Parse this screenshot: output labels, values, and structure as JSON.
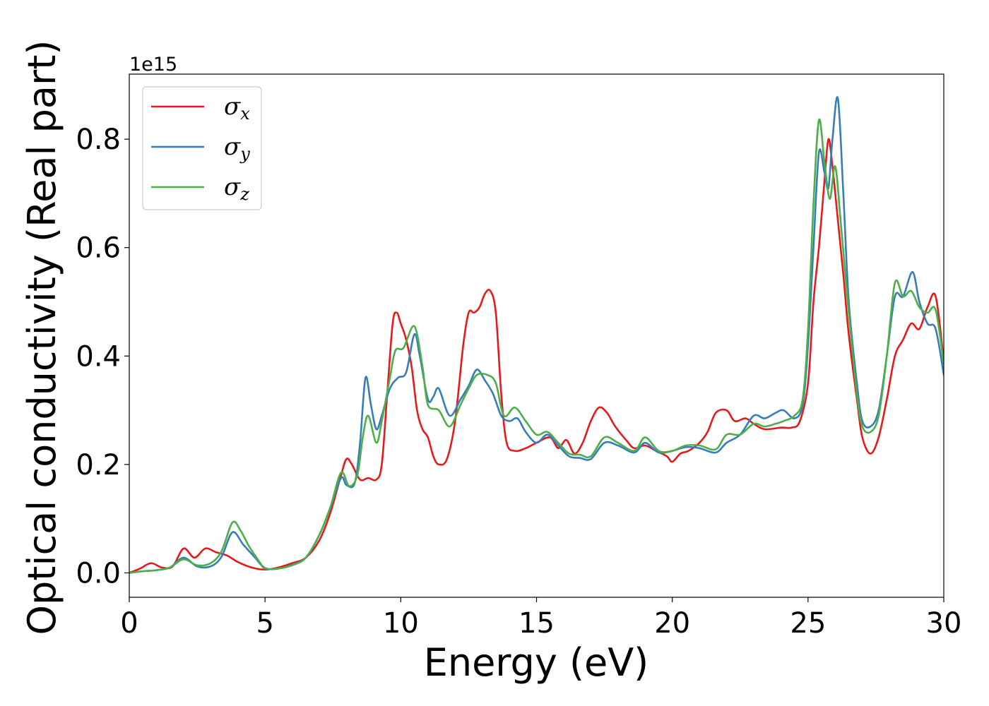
{
  "chart_data": {
    "type": "line",
    "xlabel": "Energy (eV)",
    "ylabel": "Optical conductivity (Real part)",
    "y_offset_text": "1e15",
    "xlim": [
      0,
      30
    ],
    "ylim": [
      -0.045,
      0.92
    ],
    "xticks": [
      0,
      5,
      10,
      15,
      20,
      25,
      30
    ],
    "xtick_labels": [
      "0",
      "5",
      "10",
      "15",
      "20",
      "25",
      "30"
    ],
    "yticks": [
      0.0,
      0.2,
      0.4,
      0.6,
      0.8
    ],
    "ytick_labels": [
      "0.0",
      "0.2",
      "0.4",
      "0.6",
      "0.8"
    ],
    "grid": false,
    "legend_position": "top-left",
    "series": [
      {
        "name": "σx",
        "base": "σ",
        "sub": "x",
        "color": "#e41a1c",
        "points": [
          [
            0,
            0.0
          ],
          [
            0.4,
            0.008
          ],
          [
            0.8,
            0.018
          ],
          [
            1.2,
            0.01
          ],
          [
            1.6,
            0.012
          ],
          [
            2.0,
            0.045
          ],
          [
            2.4,
            0.028
          ],
          [
            2.8,
            0.045
          ],
          [
            3.2,
            0.038
          ],
          [
            3.6,
            0.032
          ],
          [
            4.0,
            0.02
          ],
          [
            4.5,
            0.01
          ],
          [
            5.0,
            0.006
          ],
          [
            5.5,
            0.01
          ],
          [
            6.0,
            0.018
          ],
          [
            6.5,
            0.028
          ],
          [
            7.0,
            0.06
          ],
          [
            7.4,
            0.11
          ],
          [
            7.8,
            0.18
          ],
          [
            8.0,
            0.21
          ],
          [
            8.2,
            0.2
          ],
          [
            8.5,
            0.172
          ],
          [
            8.8,
            0.175
          ],
          [
            9.1,
            0.172
          ],
          [
            9.3,
            0.2
          ],
          [
            9.5,
            0.33
          ],
          [
            9.7,
            0.46
          ],
          [
            9.85,
            0.48
          ],
          [
            10.0,
            0.46
          ],
          [
            10.2,
            0.43
          ],
          [
            10.4,
            0.38
          ],
          [
            10.6,
            0.3
          ],
          [
            10.8,
            0.265
          ],
          [
            11.0,
            0.25
          ],
          [
            11.2,
            0.215
          ],
          [
            11.4,
            0.2
          ],
          [
            11.7,
            0.21
          ],
          [
            12.0,
            0.28
          ],
          [
            12.3,
            0.42
          ],
          [
            12.5,
            0.48
          ],
          [
            12.7,
            0.48
          ],
          [
            12.9,
            0.49
          ],
          [
            13.1,
            0.515
          ],
          [
            13.3,
            0.52
          ],
          [
            13.5,
            0.48
          ],
          [
            13.7,
            0.33
          ],
          [
            13.9,
            0.24
          ],
          [
            14.2,
            0.225
          ],
          [
            14.6,
            0.23
          ],
          [
            15.0,
            0.24
          ],
          [
            15.5,
            0.25
          ],
          [
            15.8,
            0.23
          ],
          [
            16.1,
            0.245
          ],
          [
            16.4,
            0.22
          ],
          [
            16.7,
            0.24
          ],
          [
            17.0,
            0.28
          ],
          [
            17.3,
            0.305
          ],
          [
            17.6,
            0.295
          ],
          [
            17.9,
            0.27
          ],
          [
            18.3,
            0.245
          ],
          [
            18.6,
            0.23
          ],
          [
            19.0,
            0.235
          ],
          [
            19.4,
            0.225
          ],
          [
            19.8,
            0.215
          ],
          [
            20.0,
            0.205
          ],
          [
            20.3,
            0.22
          ],
          [
            20.6,
            0.225
          ],
          [
            21.0,
            0.24
          ],
          [
            21.3,
            0.26
          ],
          [
            21.6,
            0.295
          ],
          [
            22.0,
            0.3
          ],
          [
            22.3,
            0.28
          ],
          [
            22.7,
            0.285
          ],
          [
            23.0,
            0.275
          ],
          [
            23.4,
            0.265
          ],
          [
            24.0,
            0.268
          ],
          [
            24.4,
            0.268
          ],
          [
            24.7,
            0.28
          ],
          [
            25.0,
            0.35
          ],
          [
            25.2,
            0.5
          ],
          [
            25.4,
            0.6
          ],
          [
            25.6,
            0.72
          ],
          [
            25.75,
            0.8
          ],
          [
            25.9,
            0.75
          ],
          [
            26.1,
            0.65
          ],
          [
            26.3,
            0.55
          ],
          [
            26.5,
            0.44
          ],
          [
            26.8,
            0.32
          ],
          [
            27.0,
            0.25
          ],
          [
            27.3,
            0.22
          ],
          [
            27.6,
            0.25
          ],
          [
            27.9,
            0.32
          ],
          [
            28.2,
            0.4
          ],
          [
            28.5,
            0.43
          ],
          [
            28.8,
            0.46
          ],
          [
            29.1,
            0.45
          ],
          [
            29.4,
            0.49
          ],
          [
            29.7,
            0.51
          ],
          [
            30.0,
            0.39
          ]
        ]
      },
      {
        "name": "σy",
        "base": "σ",
        "sub": "y",
        "color": "#377eb8",
        "points": [
          [
            0,
            0.0
          ],
          [
            0.5,
            0.003
          ],
          [
            1.0,
            0.005
          ],
          [
            1.5,
            0.01
          ],
          [
            2.0,
            0.028
          ],
          [
            2.5,
            0.012
          ],
          [
            3.0,
            0.012
          ],
          [
            3.4,
            0.03
          ],
          [
            3.8,
            0.075
          ],
          [
            4.2,
            0.052
          ],
          [
            4.6,
            0.03
          ],
          [
            5.0,
            0.009
          ],
          [
            5.5,
            0.008
          ],
          [
            6.0,
            0.015
          ],
          [
            6.5,
            0.028
          ],
          [
            7.0,
            0.07
          ],
          [
            7.4,
            0.12
          ],
          [
            7.8,
            0.175
          ],
          [
            8.0,
            0.162
          ],
          [
            8.3,
            0.165
          ],
          [
            8.5,
            0.24
          ],
          [
            8.7,
            0.36
          ],
          [
            8.9,
            0.31
          ],
          [
            9.1,
            0.265
          ],
          [
            9.3,
            0.29
          ],
          [
            9.6,
            0.34
          ],
          [
            9.9,
            0.36
          ],
          [
            10.2,
            0.37
          ],
          [
            10.5,
            0.44
          ],
          [
            10.7,
            0.4
          ],
          [
            11.0,
            0.32
          ],
          [
            11.2,
            0.325
          ],
          [
            11.4,
            0.34
          ],
          [
            11.8,
            0.29
          ],
          [
            12.2,
            0.32
          ],
          [
            12.5,
            0.345
          ],
          [
            12.8,
            0.375
          ],
          [
            13.1,
            0.355
          ],
          [
            13.4,
            0.33
          ],
          [
            13.7,
            0.29
          ],
          [
            14.0,
            0.28
          ],
          [
            14.3,
            0.285
          ],
          [
            14.6,
            0.26
          ],
          [
            15.0,
            0.24
          ],
          [
            15.4,
            0.255
          ],
          [
            15.8,
            0.235
          ],
          [
            16.2,
            0.215
          ],
          [
            16.6,
            0.212
          ],
          [
            17.0,
            0.21
          ],
          [
            17.5,
            0.24
          ],
          [
            18.0,
            0.235
          ],
          [
            18.6,
            0.222
          ],
          [
            19.0,
            0.24
          ],
          [
            19.5,
            0.222
          ],
          [
            20.0,
            0.225
          ],
          [
            20.5,
            0.232
          ],
          [
            21.0,
            0.23
          ],
          [
            21.6,
            0.222
          ],
          [
            22.0,
            0.24
          ],
          [
            22.5,
            0.255
          ],
          [
            23.0,
            0.29
          ],
          [
            23.4,
            0.285
          ],
          [
            23.8,
            0.295
          ],
          [
            24.1,
            0.3
          ],
          [
            24.5,
            0.285
          ],
          [
            24.8,
            0.31
          ],
          [
            25.0,
            0.42
          ],
          [
            25.2,
            0.6
          ],
          [
            25.4,
            0.775
          ],
          [
            25.6,
            0.74
          ],
          [
            25.75,
            0.71
          ],
          [
            25.9,
            0.8
          ],
          [
            26.1,
            0.875
          ],
          [
            26.3,
            0.7
          ],
          [
            26.5,
            0.5
          ],
          [
            26.8,
            0.35
          ],
          [
            27.0,
            0.28
          ],
          [
            27.3,
            0.27
          ],
          [
            27.6,
            0.3
          ],
          [
            27.9,
            0.4
          ],
          [
            28.2,
            0.51
          ],
          [
            28.5,
            0.51
          ],
          [
            28.85,
            0.555
          ],
          [
            29.1,
            0.5
          ],
          [
            29.4,
            0.46
          ],
          [
            29.7,
            0.45
          ],
          [
            30.0,
            0.365
          ]
        ]
      },
      {
        "name": "σz",
        "base": "σ",
        "sub": "z",
        "color": "#4daf4a",
        "points": [
          [
            0,
            0.0
          ],
          [
            0.5,
            0.003
          ],
          [
            1.0,
            0.005
          ],
          [
            1.5,
            0.01
          ],
          [
            2.0,
            0.025
          ],
          [
            2.5,
            0.014
          ],
          [
            3.0,
            0.018
          ],
          [
            3.4,
            0.04
          ],
          [
            3.8,
            0.093
          ],
          [
            4.1,
            0.078
          ],
          [
            4.4,
            0.05
          ],
          [
            4.8,
            0.02
          ],
          [
            5.0,
            0.008
          ],
          [
            5.5,
            0.008
          ],
          [
            6.0,
            0.014
          ],
          [
            6.5,
            0.028
          ],
          [
            7.0,
            0.07
          ],
          [
            7.4,
            0.12
          ],
          [
            7.8,
            0.185
          ],
          [
            8.1,
            0.16
          ],
          [
            8.4,
            0.18
          ],
          [
            8.6,
            0.25
          ],
          [
            8.8,
            0.29
          ],
          [
            9.1,
            0.24
          ],
          [
            9.3,
            0.28
          ],
          [
            9.6,
            0.36
          ],
          [
            9.8,
            0.41
          ],
          [
            10.1,
            0.415
          ],
          [
            10.5,
            0.455
          ],
          [
            10.8,
            0.38
          ],
          [
            11.0,
            0.31
          ],
          [
            11.4,
            0.3
          ],
          [
            11.8,
            0.27
          ],
          [
            12.2,
            0.31
          ],
          [
            12.5,
            0.34
          ],
          [
            12.8,
            0.365
          ],
          [
            13.2,
            0.365
          ],
          [
            13.5,
            0.35
          ],
          [
            13.8,
            0.29
          ],
          [
            14.2,
            0.305
          ],
          [
            14.6,
            0.28
          ],
          [
            15.0,
            0.255
          ],
          [
            15.4,
            0.26
          ],
          [
            15.8,
            0.24
          ],
          [
            16.2,
            0.22
          ],
          [
            16.6,
            0.218
          ],
          [
            17.0,
            0.215
          ],
          [
            17.5,
            0.25
          ],
          [
            18.0,
            0.24
          ],
          [
            18.6,
            0.225
          ],
          [
            19.0,
            0.25
          ],
          [
            19.5,
            0.225
          ],
          [
            20.0,
            0.225
          ],
          [
            20.5,
            0.235
          ],
          [
            21.0,
            0.235
          ],
          [
            21.6,
            0.228
          ],
          [
            22.0,
            0.255
          ],
          [
            22.5,
            0.255
          ],
          [
            23.0,
            0.275
          ],
          [
            23.4,
            0.27
          ],
          [
            23.8,
            0.275
          ],
          [
            24.1,
            0.28
          ],
          [
            24.5,
            0.29
          ],
          [
            24.8,
            0.32
          ],
          [
            25.0,
            0.45
          ],
          [
            25.2,
            0.68
          ],
          [
            25.4,
            0.835
          ],
          [
            25.6,
            0.76
          ],
          [
            25.8,
            0.69
          ],
          [
            26.0,
            0.75
          ],
          [
            26.2,
            0.65
          ],
          [
            26.5,
            0.48
          ],
          [
            26.8,
            0.33
          ],
          [
            27.0,
            0.27
          ],
          [
            27.3,
            0.26
          ],
          [
            27.6,
            0.29
          ],
          [
            27.9,
            0.4
          ],
          [
            28.2,
            0.535
          ],
          [
            28.5,
            0.51
          ],
          [
            28.8,
            0.52
          ],
          [
            29.1,
            0.49
          ],
          [
            29.4,
            0.48
          ],
          [
            29.7,
            0.485
          ],
          [
            30.0,
            0.385
          ]
        ]
      }
    ]
  }
}
